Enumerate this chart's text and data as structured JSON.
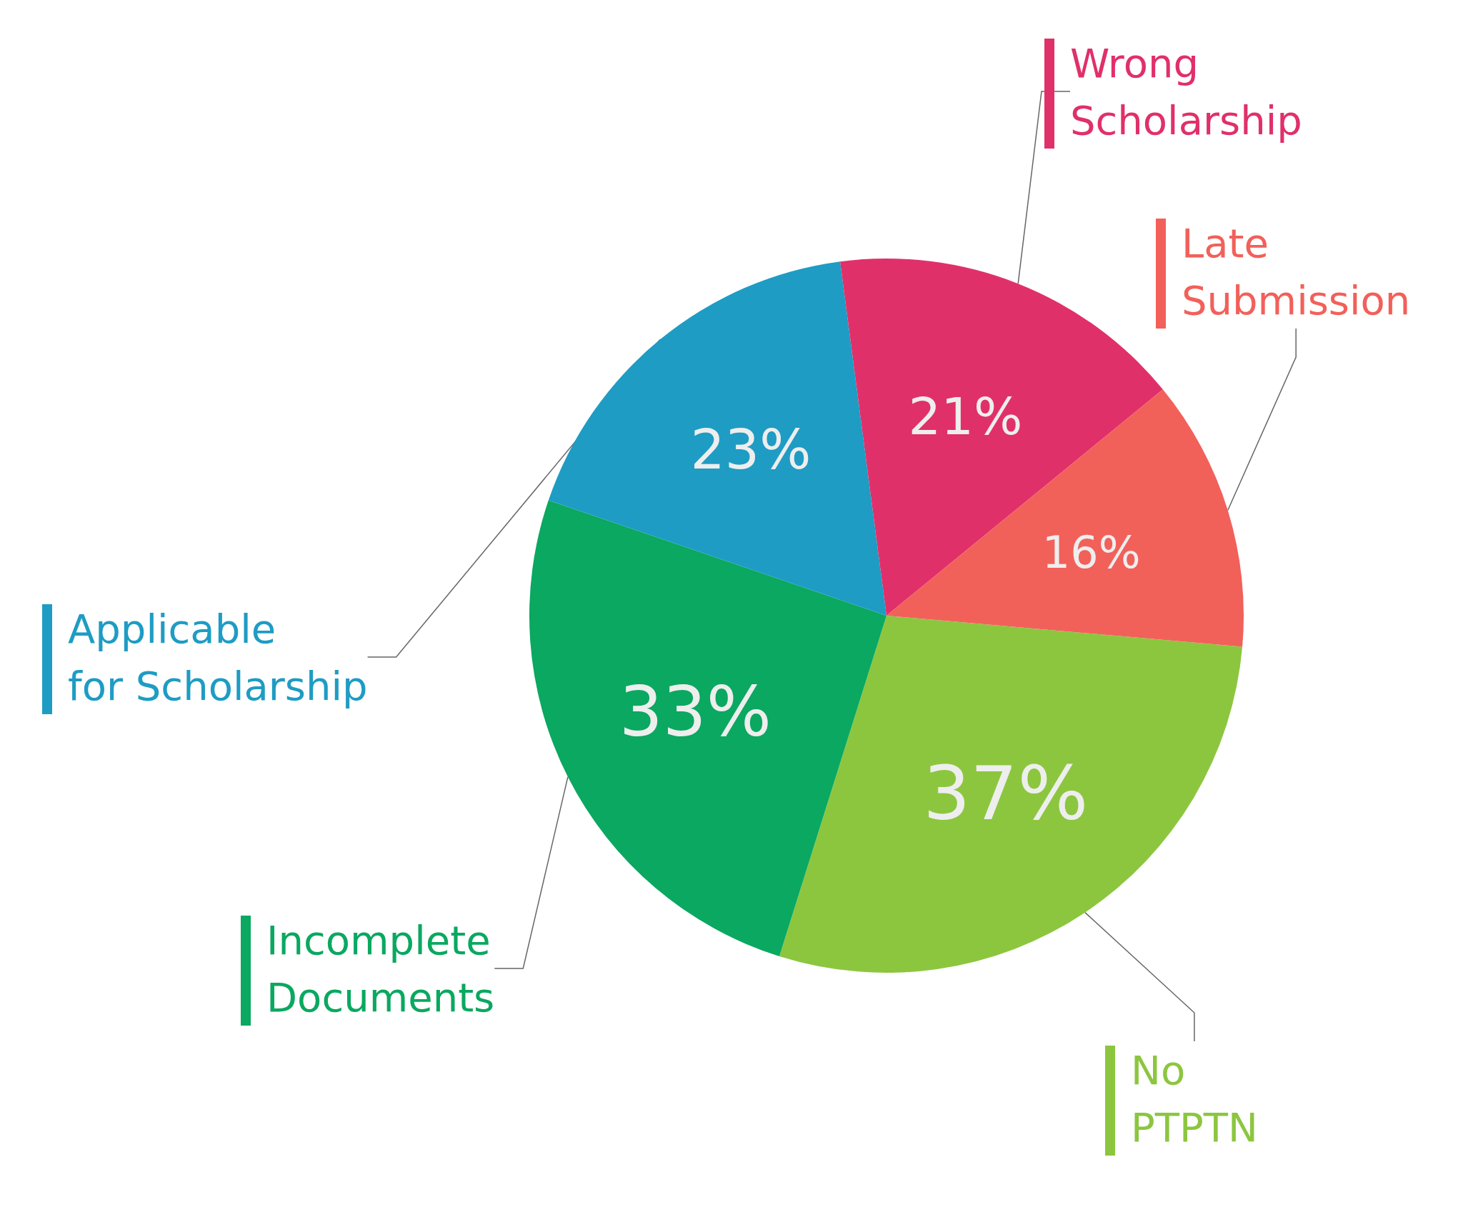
{
  "chart_data": {
    "type": "pie",
    "categories": [
      "No PTPTN",
      "Incomplete Documents",
      "Applicable for Scholarship",
      "Wrong Scholarship",
      "Late Submission"
    ],
    "values": [
      37,
      33,
      23,
      21,
      16
    ],
    "colors": [
      "#8cc63f",
      "#0aa860",
      "#1e9cc4",
      "#e0306a",
      "#f2605a"
    ],
    "value_labels": [
      "37%",
      "33%",
      "23%",
      "21%",
      "16%"
    ]
  }
}
